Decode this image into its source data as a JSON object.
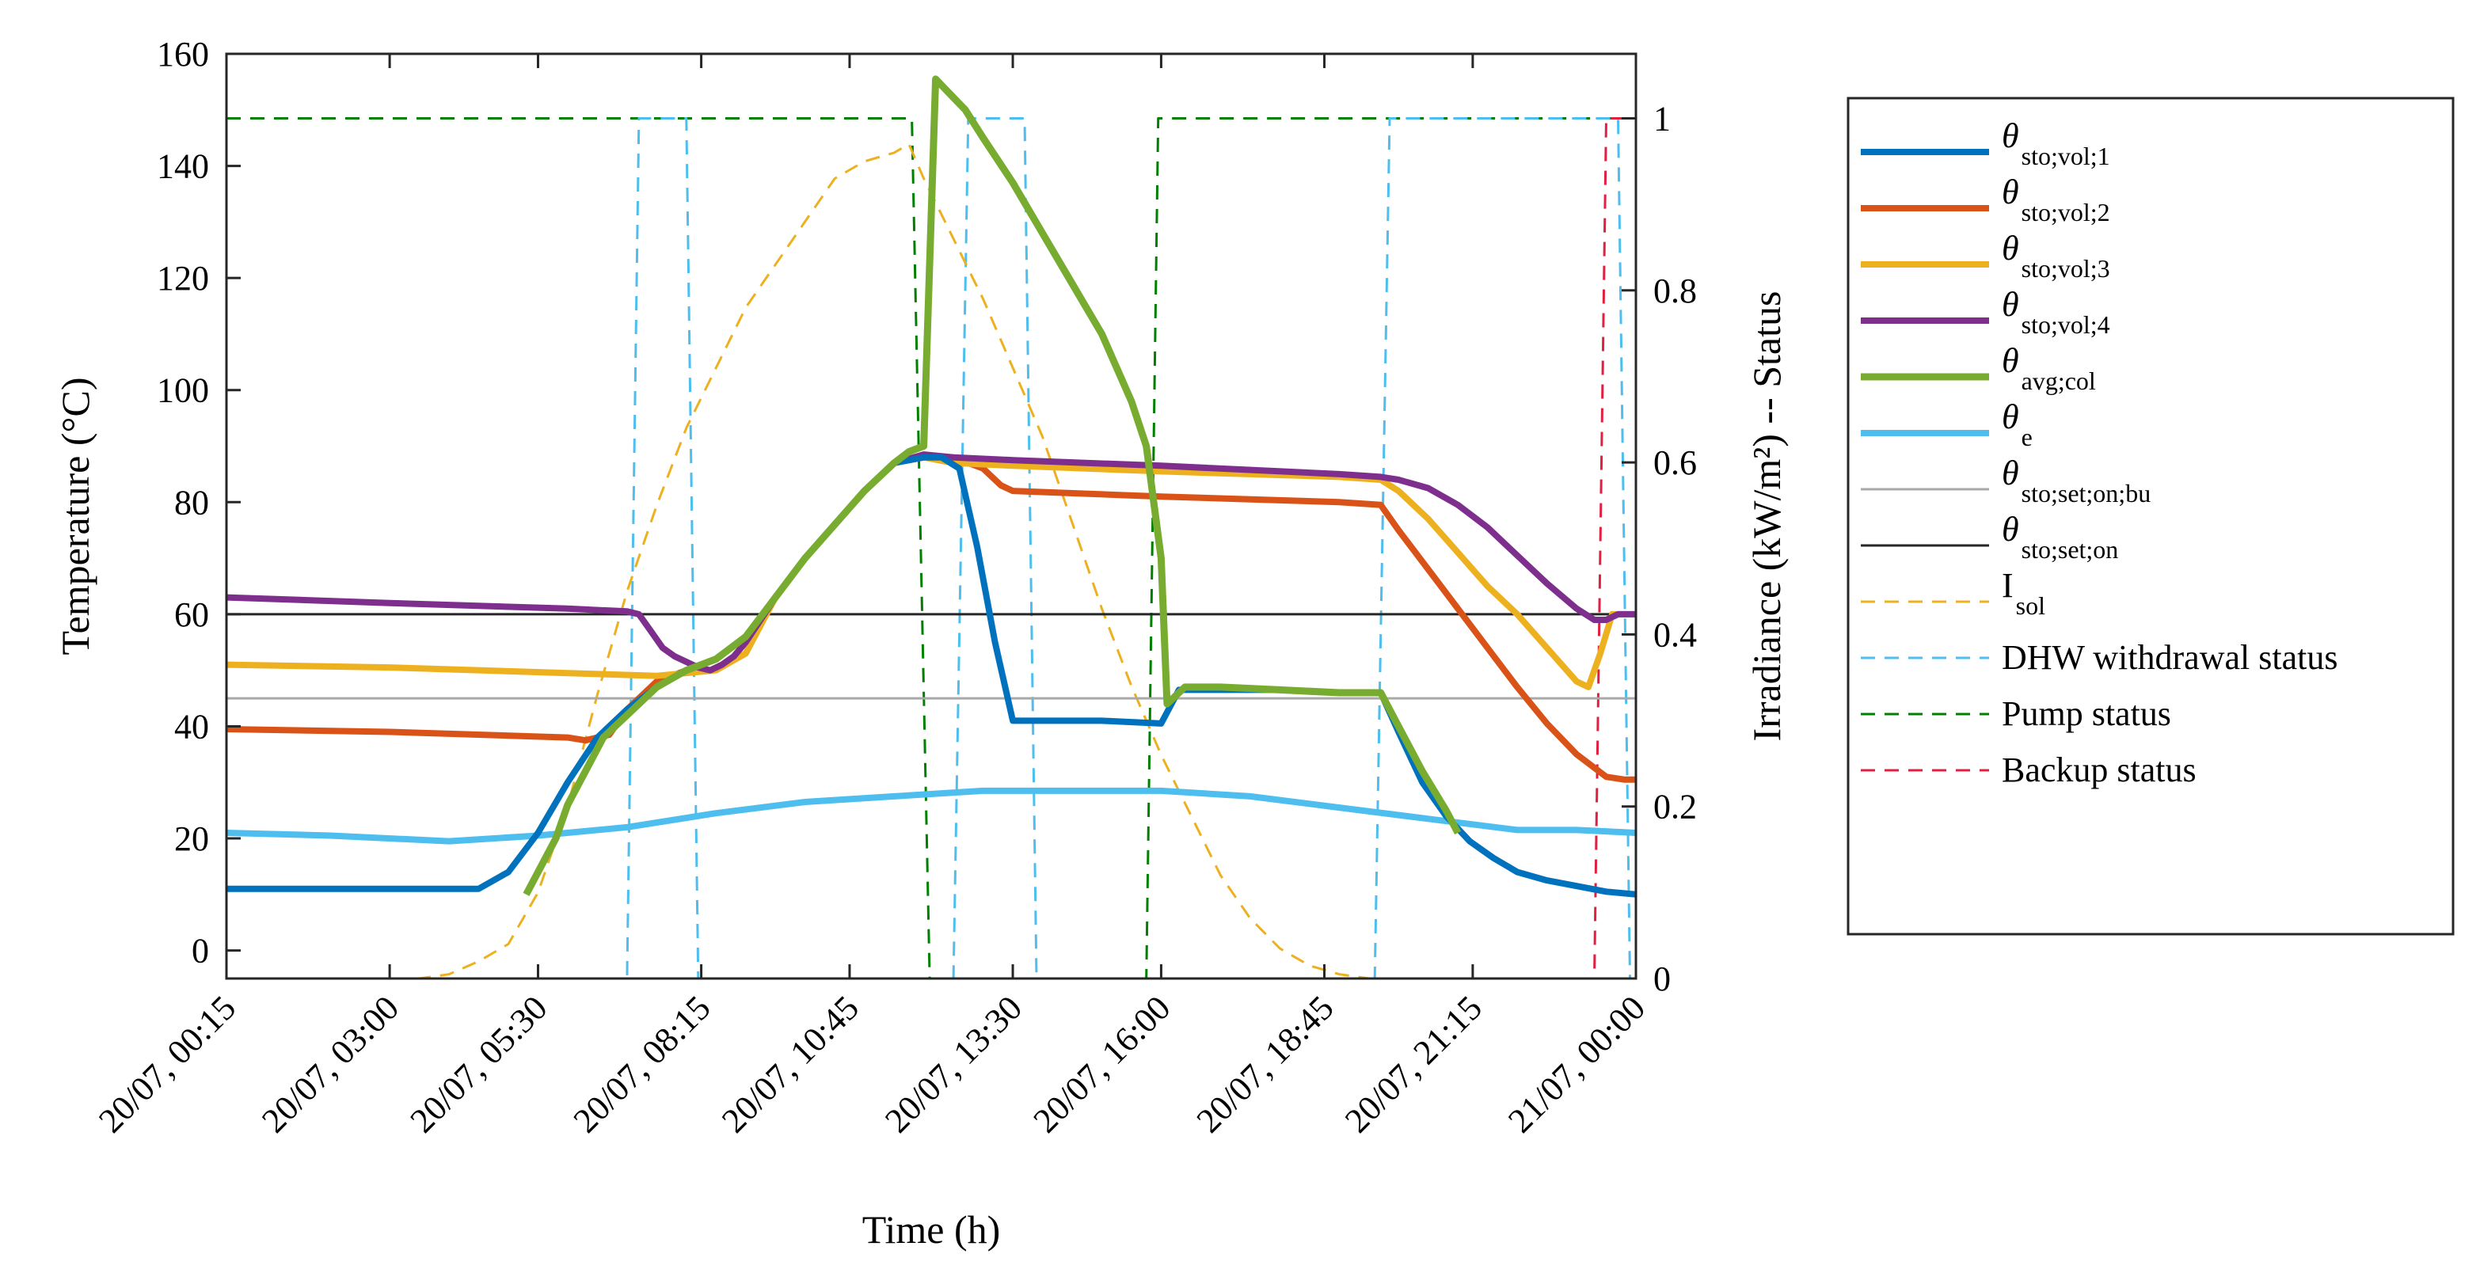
{
  "chart_data": {
    "type": "line",
    "xlabel": "Time (h)",
    "ylabel_left": "Temperature (°C)",
    "ylabel_right": "Irradiance (kW/m²) -- Status",
    "xlim": [
      0.25,
      24.0
    ],
    "ylim_left": [
      -5,
      160
    ],
    "ylim_right": [
      0,
      1.075
    ],
    "grid": false,
    "legend_position": "outside-right",
    "x_ticks": [
      {
        "value": 0.25,
        "label": "20/07, 00:15"
      },
      {
        "value": 3.0,
        "label": "20/07, 03:00"
      },
      {
        "value": 5.5,
        "label": "20/07, 05:30"
      },
      {
        "value": 8.25,
        "label": "20/07, 08:15"
      },
      {
        "value": 10.75,
        "label": "20/07, 10:45"
      },
      {
        "value": 13.5,
        "label": "20/07, 13:30"
      },
      {
        "value": 16.0,
        "label": "20/07, 16:00"
      },
      {
        "value": 18.75,
        "label": "20/07, 18:45"
      },
      {
        "value": 21.25,
        "label": "20/07, 21:15"
      },
      {
        "value": 24.0,
        "label": "21/07, 00:00"
      }
    ],
    "y_ticks_left": [
      0,
      20,
      40,
      60,
      80,
      100,
      120,
      140,
      160
    ],
    "y_ticks_right": [
      0,
      0.2,
      0.4,
      0.6,
      0.8,
      1
    ],
    "series": [
      {
        "name": "θ_sto;vol;1",
        "label_main": "θ",
        "label_sub": "sto;vol;1",
        "axis": "left",
        "color": "#0072BD",
        "width": 8,
        "dash": "",
        "x": [
          0.25,
          4.0,
          4.5,
          5.0,
          5.5,
          6.0,
          6.5,
          7.0,
          7.5,
          8.0,
          8.5,
          9.0,
          9.5,
          10.0,
          10.5,
          11.0,
          11.5,
          12.0,
          12.3,
          12.6,
          12.9,
          13.2,
          13.5,
          14.0,
          15.0,
          16.0,
          16.3,
          17.0,
          18.0,
          19.0,
          19.7,
          20.0,
          20.4,
          20.8,
          21.2,
          21.6,
          22.0,
          22.5,
          23.0,
          23.5,
          24.0
        ],
        "y": [
          11,
          11,
          11,
          14,
          21,
          30,
          38,
          43,
          47,
          50,
          52,
          56,
          63,
          70,
          76,
          82,
          87,
          88,
          88,
          86,
          72,
          55,
          41,
          41,
          41,
          40.5,
          46.5,
          46.5,
          46.5,
          46,
          46,
          39,
          30,
          24,
          19.5,
          16.5,
          14,
          12.5,
          11.5,
          10.5,
          10
        ]
      },
      {
        "name": "θ_sto;vol;2",
        "label_main": "θ",
        "label_sub": "sto;vol;2",
        "axis": "left",
        "color": "#D95319",
        "width": 8,
        "dash": "",
        "x": [
          0.25,
          3.0,
          6.0,
          6.3,
          6.7,
          7.0,
          7.5,
          8.0,
          8.5,
          9.0,
          9.5,
          10.0,
          10.5,
          11.0,
          11.5,
          12.0,
          12.5,
          13.0,
          13.3,
          13.5,
          16.0,
          19.0,
          19.7,
          20.0,
          20.5,
          21.0,
          21.5,
          22.0,
          22.5,
          23.0,
          23.5,
          23.8,
          24.0
        ],
        "y": [
          39.5,
          39,
          38,
          37.5,
          38.5,
          43,
          48,
          50,
          52,
          56,
          63,
          70,
          76,
          82,
          87,
          88,
          88,
          86,
          83,
          82,
          81,
          80,
          79.5,
          75,
          68,
          61,
          54,
          47,
          40.5,
          35,
          31,
          30.5,
          30.5
        ]
      },
      {
        "name": "θ_sto;vol;3",
        "label_main": "θ",
        "label_sub": "sto;vol;3",
        "axis": "left",
        "color": "#EDB120",
        "width": 8,
        "dash": "",
        "x": [
          0.25,
          3.0,
          6.0,
          7.5,
          8.5,
          9.0,
          9.5,
          10.0,
          10.5,
          11.0,
          11.5,
          12.0,
          12.5,
          13.5,
          16.0,
          19.0,
          19.7,
          20.0,
          20.5,
          21.0,
          21.5,
          22.0,
          22.5,
          23.0,
          23.2,
          23.4,
          23.6,
          24.0
        ],
        "y": [
          51,
          50.5,
          49.5,
          49,
          50,
          53,
          63,
          70,
          76,
          82,
          87,
          88,
          87,
          86.5,
          85.5,
          84.5,
          84,
          82,
          77,
          71,
          65,
          60,
          54,
          48,
          47,
          53,
          60,
          60
        ]
      },
      {
        "name": "θ_sto;vol;4",
        "label_main": "θ",
        "label_sub": "sto;vol;4",
        "axis": "left",
        "color": "#7E2F8E",
        "width": 8,
        "dash": "",
        "x": [
          0.25,
          3.0,
          6.0,
          7.0,
          7.2,
          7.4,
          7.6,
          7.8,
          8.0,
          8.2,
          8.4,
          8.6,
          8.8,
          9.0,
          9.5,
          10.0,
          10.5,
          11.0,
          11.5,
          12.0,
          12.5,
          13.5,
          16.0,
          19.0,
          19.7,
          20.0,
          20.5,
          21.0,
          21.5,
          22.0,
          22.5,
          23.0,
          23.3,
          23.5,
          23.7,
          24.0
        ],
        "y": [
          63,
          62,
          61,
          60.5,
          60,
          57,
          54,
          52.5,
          51.5,
          50.5,
          50,
          51,
          52.5,
          55,
          63,
          70,
          76,
          82,
          87,
          88.5,
          88,
          87.5,
          86.5,
          85,
          84.5,
          84,
          82.5,
          79.5,
          75.5,
          70.5,
          65.5,
          61,
          59,
          59,
          60,
          60
        ]
      },
      {
        "name": "θ_avg;col",
        "label_main": "θ",
        "label_sub": "avg;col",
        "axis": "left",
        "color": "#77AC30",
        "width": 9,
        "dash": "",
        "x": [
          5.3,
          5.5,
          5.8,
          6.0,
          6.3,
          6.6,
          7.0,
          7.5,
          8.0,
          8.5,
          9.0,
          9.5,
          10.0,
          10.5,
          11.0,
          11.5,
          11.75,
          12.0,
          12.2,
          12.7,
          13.0,
          13.5,
          14.0,
          14.5,
          15.0,
          15.5,
          15.75,
          16.0,
          16.1,
          16.4,
          17.0,
          18.0,
          19.0,
          19.7,
          20.0,
          20.4,
          20.8,
          21.0
        ],
        "y": [
          10,
          14,
          20,
          26,
          32,
          38,
          42,
          47,
          50,
          52,
          56,
          63,
          70,
          76,
          82,
          87,
          89,
          90,
          155.5,
          150,
          145,
          137,
          128,
          119,
          110,
          98,
          90,
          70,
          44,
          47,
          47,
          46.5,
          46,
          46,
          40,
          32,
          25,
          21
        ]
      },
      {
        "name": "θ_e",
        "label_main": "θ",
        "label_sub": "e",
        "axis": "left",
        "color": "#4DBEEE",
        "width": 8,
        "dash": "",
        "x": [
          0.25,
          2.0,
          4.0,
          5.5,
          7.0,
          8.5,
          10.0,
          11.5,
          13.0,
          14.5,
          16.0,
          17.5,
          19.0,
          20.5,
          22.0,
          23.0,
          24.0
        ],
        "y": [
          21,
          20.5,
          19.5,
          20.5,
          22,
          24.5,
          26.5,
          27.5,
          28.5,
          28.5,
          28.5,
          27.5,
          25.5,
          23.5,
          21.5,
          21.5,
          21
        ]
      },
      {
        "name": "θ_sto;set;on;bu",
        "label_main": "θ",
        "label_sub": "sto;set;on;bu",
        "axis": "left",
        "color": "#A9A9A9",
        "width": 3,
        "dash": "",
        "x": [
          0.25,
          24.0
        ],
        "y": [
          45,
          45
        ]
      },
      {
        "name": "θ_sto;set;on",
        "label_main": "θ",
        "label_sub": "sto;set;on",
        "axis": "left",
        "color": "#262626",
        "width": 3,
        "dash": "",
        "x": [
          0.25,
          24.0
        ],
        "y": [
          60,
          60
        ]
      },
      {
        "name": "I_sol",
        "label_main": "I",
        "label_sub": "sol",
        "axis": "right",
        "color": "#EDB120",
        "width": 3,
        "dash": "18,12",
        "x": [
          0.25,
          3.0,
          3.5,
          4.0,
          4.5,
          5.0,
          5.5,
          6.0,
          6.5,
          7.0,
          7.5,
          8.0,
          8.5,
          9.0,
          9.5,
          10.0,
          10.5,
          11.0,
          11.5,
          11.75,
          12.0,
          12.5,
          13.0,
          13.5,
          14.0,
          14.5,
          15.0,
          15.5,
          16.0,
          16.5,
          17.0,
          17.5,
          18.0,
          18.5,
          19.0,
          19.5,
          20.0,
          24.0
        ],
        "y": [
          0,
          0,
          0,
          0.005,
          0.02,
          0.04,
          0.1,
          0.2,
          0.33,
          0.45,
          0.55,
          0.64,
          0.71,
          0.78,
          0.83,
          0.88,
          0.93,
          0.95,
          0.96,
          0.97,
          0.93,
          0.86,
          0.79,
          0.71,
          0.63,
          0.53,
          0.43,
          0.34,
          0.26,
          0.19,
          0.12,
          0.07,
          0.035,
          0.015,
          0.005,
          0,
          0,
          0
        ]
      },
      {
        "name": "DHW withdrawal status",
        "label_main": "DHW withdrawal status",
        "label_sub": "",
        "axis": "right",
        "color": "#4DBEEE",
        "width": 3,
        "dash": "18,12",
        "x": [
          0.25,
          7.0,
          7.2,
          8.0,
          8.2,
          12.5,
          12.75,
          13.7,
          13.9,
          19.6,
          19.85,
          23.7,
          23.9,
          24.0
        ],
        "y": [
          0,
          0,
          1,
          1,
          0,
          0,
          1,
          1,
          0,
          0,
          1,
          1,
          0,
          0
        ]
      },
      {
        "name": "Pump status",
        "label_main": "Pump status",
        "label_sub": "",
        "axis": "right",
        "color": "#008000",
        "width": 3,
        "dash": "18,12",
        "x": [
          0.25,
          11.8,
          12.1,
          15.75,
          15.95,
          24.0
        ],
        "y": [
          1,
          1,
          0,
          0,
          1,
          1
        ]
      },
      {
        "name": "Backup status",
        "label_main": "Backup status",
        "label_sub": "",
        "axis": "right",
        "color": "#E02040",
        "width": 3,
        "dash": "18,12",
        "x": [
          0.25,
          23.3,
          23.5,
          24.0
        ],
        "y": [
          0,
          0,
          1,
          1
        ]
      }
    ]
  }
}
